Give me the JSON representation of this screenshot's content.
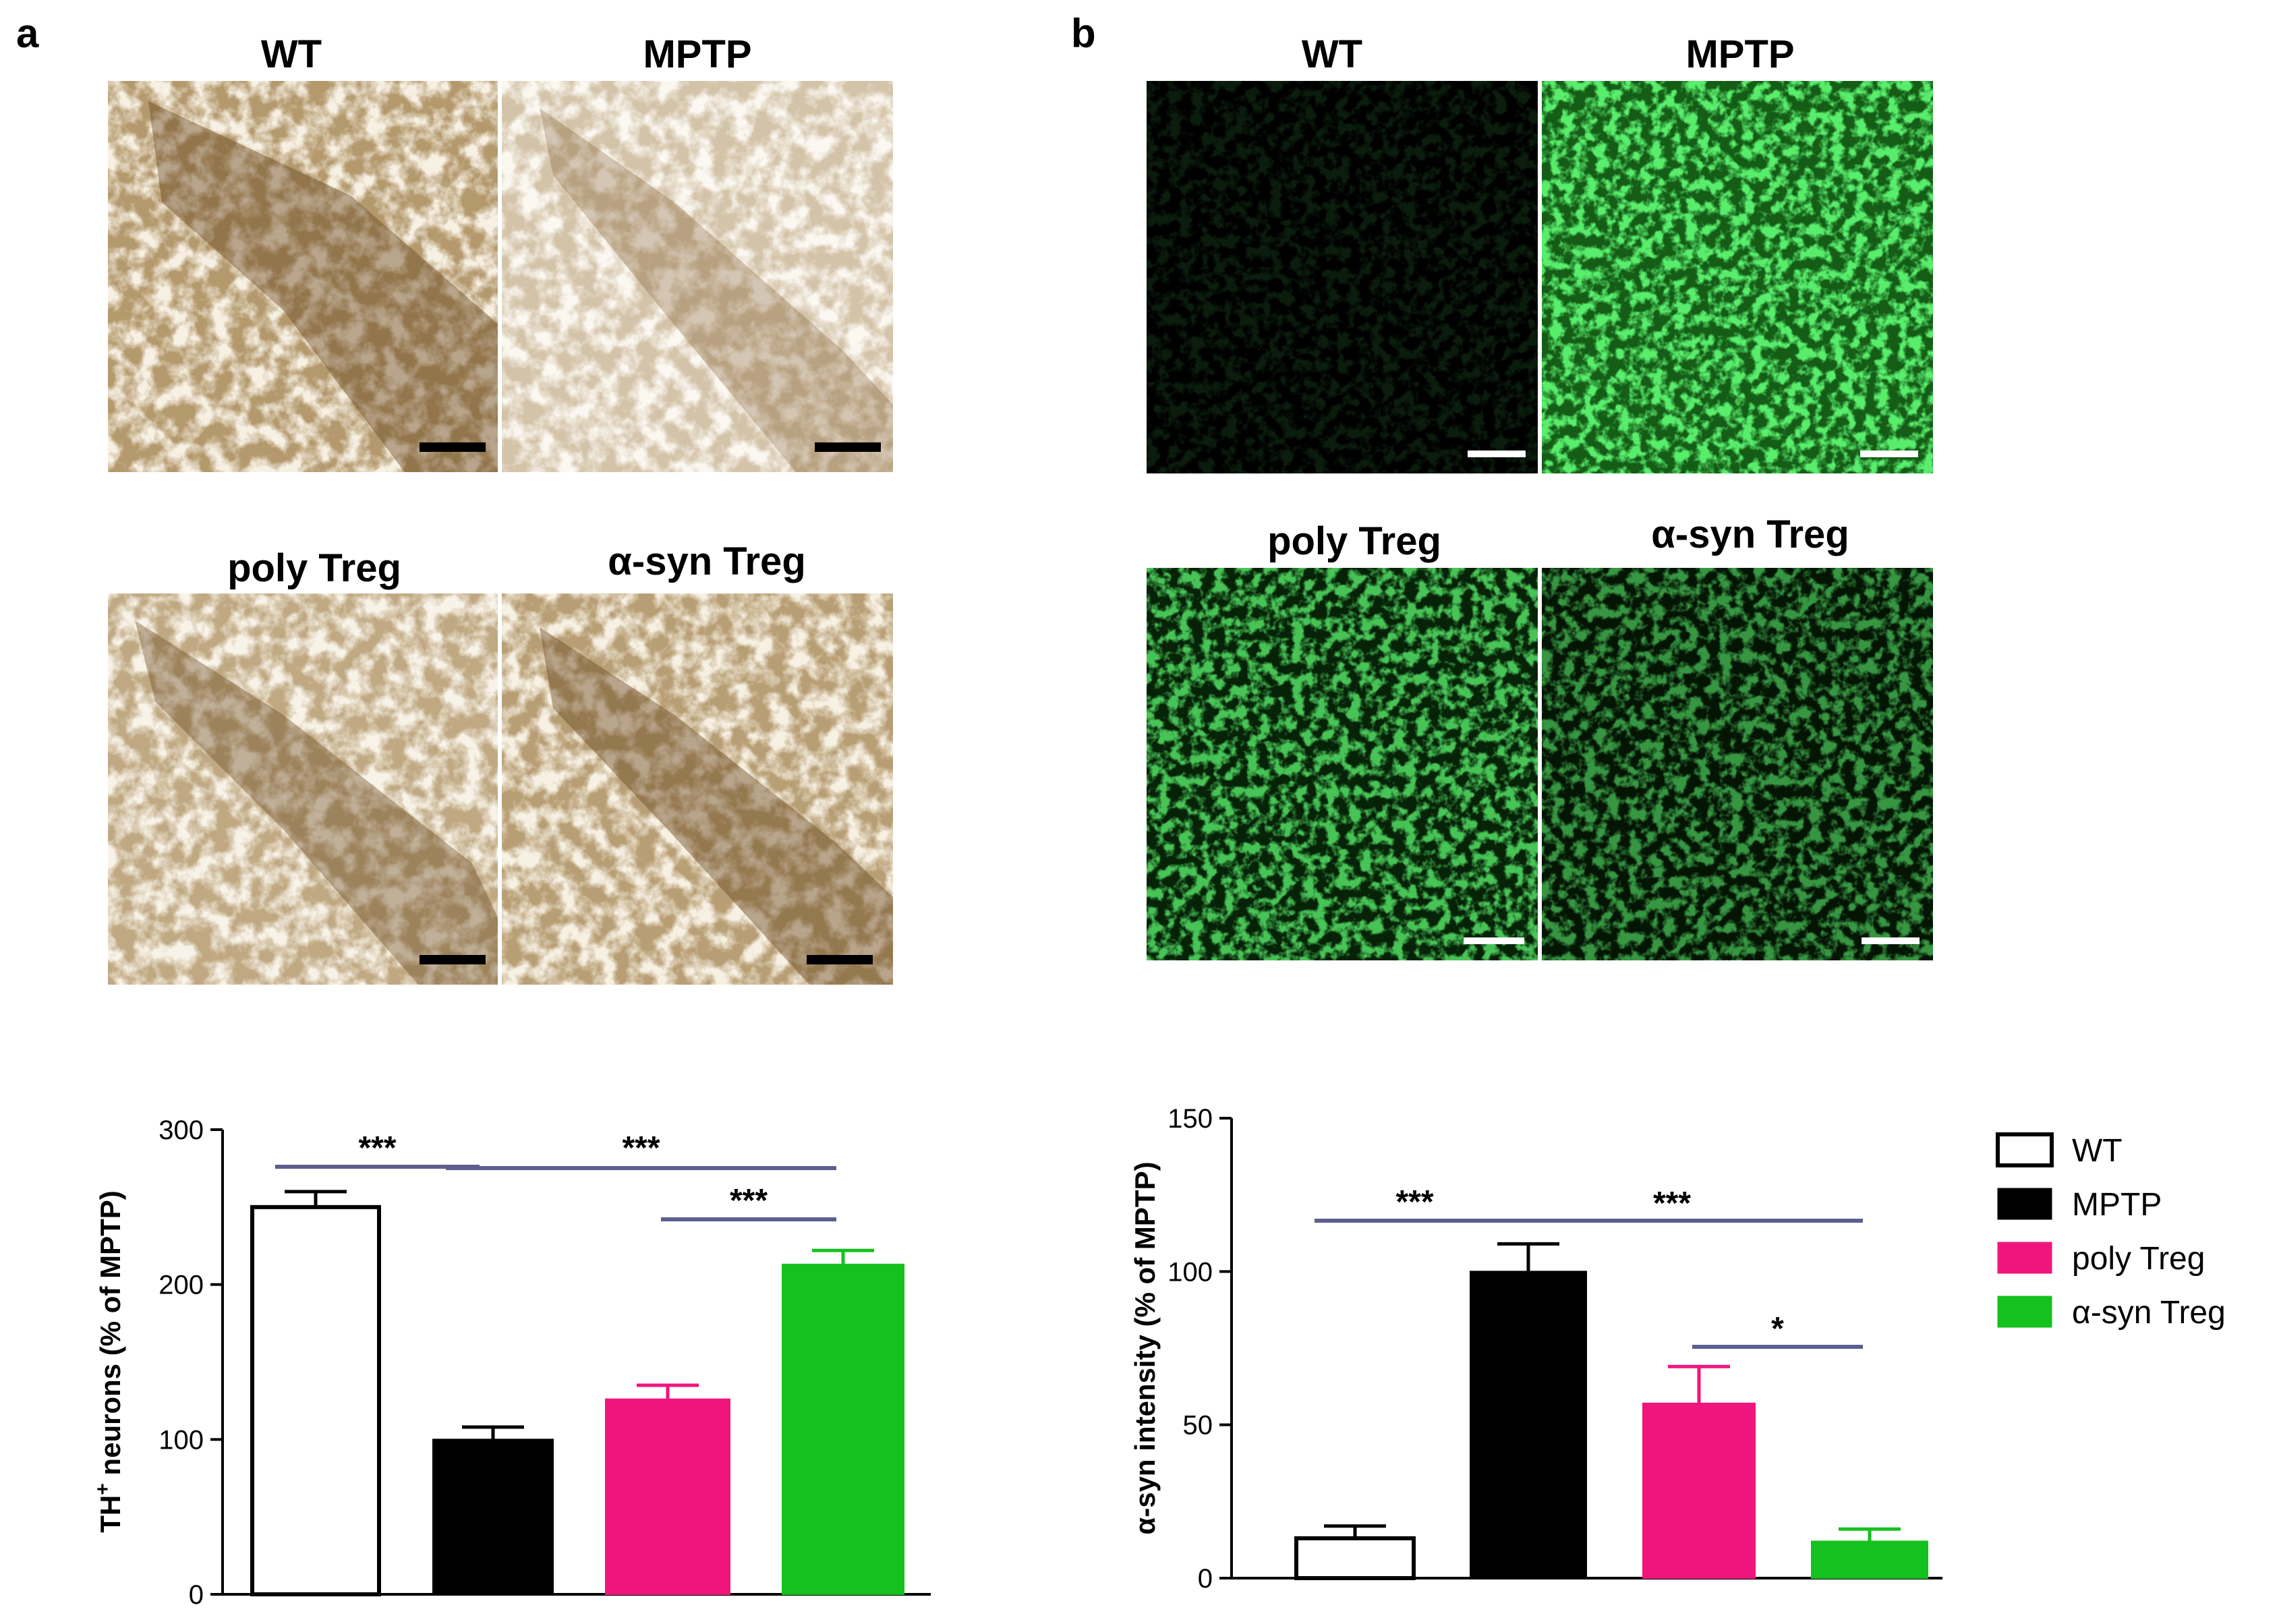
{
  "panels": {
    "a": {
      "letter": "a",
      "image_labels": [
        "WT",
        "MPTP",
        "poly Treg",
        "α-syn Treg"
      ]
    },
    "b": {
      "letter": "b",
      "image_labels": [
        "WT",
        "MPTP",
        "poly Treg",
        "α-syn Treg"
      ]
    }
  },
  "colors": {
    "WT": "#ffffff",
    "MPTP": "#000000",
    "poly_Treg": "#f0157d",
    "asyn_Treg": "#14c11e",
    "bracket": "#5c5f8e",
    "stain_brown": "#7a5326",
    "fluor_green": "#34d83c"
  },
  "legend": {
    "items": [
      {
        "label": "WT",
        "color": "#ffffff"
      },
      {
        "label": "MPTP",
        "color": "#000000"
      },
      {
        "label": "poly Treg",
        "color": "#f0157d"
      },
      {
        "label": "α-syn Treg",
        "color": "#14c11e"
      }
    ]
  },
  "chart_data": [
    {
      "type": "bar",
      "categories": [
        "WT",
        "MPTP",
        "poly Treg",
        "α-syn Treg"
      ],
      "values": [
        250,
        100,
        126,
        213
      ],
      "errors": [
        10,
        8,
        9,
        9
      ],
      "ylabel_main": "TH",
      "ylabel_sup": "+",
      "ylabel_rest": " neurons (% of MPTP)",
      "ylim": [
        0,
        300
      ],
      "yticks": [
        0,
        100,
        200,
        300
      ],
      "significance": [
        {
          "from": 0,
          "to": 1,
          "label": "***"
        },
        {
          "from": 1,
          "to": 3,
          "label": "***"
        },
        {
          "from": 2,
          "to": 3,
          "label": "***"
        }
      ]
    },
    {
      "type": "bar",
      "categories": [
        "WT",
        "MPTP",
        "poly Treg",
        "α-syn Treg"
      ],
      "values": [
        13,
        100,
        57,
        12
      ],
      "errors": [
        4,
        9,
        12,
        4
      ],
      "ylabel_main": "α-syn intensity (% of MPTP)",
      "ylabel_sup": "",
      "ylabel_rest": "",
      "ylim": [
        0,
        150
      ],
      "yticks": [
        0,
        50,
        100,
        150
      ],
      "significance": [
        {
          "from": 0,
          "to": 1,
          "label": "***"
        },
        {
          "from": 1,
          "to": 3,
          "label": "***"
        },
        {
          "from": 2,
          "to": 3,
          "label": "*"
        }
      ]
    }
  ]
}
